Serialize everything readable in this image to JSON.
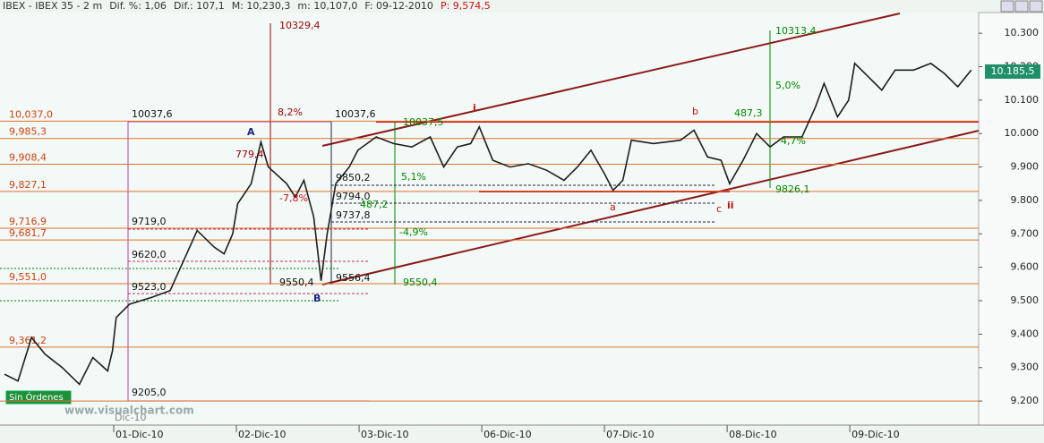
{
  "chart_data": {
    "type": "line",
    "header": [
      "IBEX - IBEX 35 - 2 m",
      "Dif. %: 1,06",
      "Dif.: 107,1",
      "M: 10,230,3",
      "m: 10,107,0",
      "F: 09-12-2010",
      "P: 9,574,5"
    ],
    "x": [
      0.11,
      0.22,
      0.33,
      0.44,
      0.58,
      0.72,
      0.83,
      0.95,
      0.99,
      1.02,
      1.13,
      1.31,
      1.46,
      1.57,
      1.68,
      1.82,
      1.9,
      1.97,
      2.01,
      2.12,
      2.2,
      2.26,
      2.41,
      2.48,
      2.55,
      2.63,
      2.69,
      2.74,
      2.81,
      2.92,
      2.99,
      3.14,
      3.28,
      3.43,
      3.58,
      3.69,
      3.8,
      3.91,
      3.98,
      4.09,
      4.23,
      4.38,
      4.53,
      4.67,
      4.78,
      4.89,
      5.0,
      5.07,
      5.15,
      5.22,
      5.4,
      5.62,
      5.73,
      5.84,
      5.95,
      6.02,
      6.13,
      6.24,
      6.35,
      6.46,
      6.61,
      6.72,
      6.79,
      6.9,
      6.99,
      7.04,
      7.15,
      7.26,
      7.37,
      7.52,
      7.66,
      7.77,
      7.88,
      7.99
    ],
    "series": [
      {
        "color": "#1e1e1e",
        "values": [
          9280,
          9260,
          9390,
          9340,
          9300,
          9250,
          9330,
          9290,
          9350,
          9450,
          9490,
          9510,
          9530,
          9620,
          9710,
          9660,
          9640,
          9700,
          9790,
          9850,
          9975,
          9900,
          9850,
          9810,
          9860,
          9750,
          9560,
          9700,
          9850,
          9900,
          9950,
          9990,
          9970,
          9960,
          9990,
          9900,
          9960,
          9970,
          10020,
          9920,
          9900,
          9910,
          9890,
          9860,
          9900,
          9950,
          9880,
          9830,
          9860,
          9980,
          9970,
          9980,
          10010,
          9930,
          9920,
          9850,
          9920,
          10000,
          9960,
          9990,
          9990,
          10080,
          10150,
          10050,
          10100,
          10210,
          10170,
          10130,
          10190,
          10190,
          10210,
          10180,
          10140,
          10190
        ]
      }
    ],
    "xlim": [
      0.073,
      8.05
    ],
    "xticks": [
      {
        "value": 1,
        "label": "01-Dic-10"
      },
      {
        "value": 2,
        "label": "02-Dic-10"
      },
      {
        "value": 3,
        "label": "03-Dic-10"
      },
      {
        "value": 4,
        "label": "06-Dic-10"
      },
      {
        "value": 5,
        "label": "07-Dic-10"
      },
      {
        "value": 6,
        "label": "08-Dic-10"
      },
      {
        "value": 7,
        "label": "09-Dic-10"
      }
    ],
    "ylim": [
      9128,
      10362
    ],
    "yticks": [
      {
        "value": 10300,
        "label": "10.300"
      },
      {
        "value": 10200,
        "label": "10.200"
      },
      {
        "value": 10100,
        "label": "10.100"
      },
      {
        "value": 10000,
        "label": "10.000"
      },
      {
        "value": 9900,
        "label": "9.900"
      },
      {
        "value": 9800,
        "label": "9.800"
      },
      {
        "value": 9700,
        "label": "9.700"
      },
      {
        "value": 9600,
        "label": "9.600"
      },
      {
        "value": 9500,
        "label": "9.500"
      },
      {
        "value": 9400,
        "label": "9.400"
      },
      {
        "value": 9300,
        "label": "9.300"
      },
      {
        "value": 9200,
        "label": "9.200"
      }
    ],
    "levels": [
      {
        "value": 10037,
        "label": "10,037,0"
      },
      {
        "value": 9985.3,
        "label": "9,985,3"
      },
      {
        "value": 9908.4,
        "label": "9,908,4"
      },
      {
        "value": 9827.1,
        "label": "9,827,1"
      },
      {
        "value": 9716.9,
        "label": "9,716,9"
      },
      {
        "value": 9681.7,
        "label": "9,681,7"
      },
      {
        "value": 9551,
        "label": "9,551,0"
      },
      {
        "value": 9361.2,
        "label": "9,361,2"
      },
      {
        "value": 9200
      }
    ],
    "last_price": {
      "value": 10185.5,
      "label": "10.185,5"
    },
    "annotations": [
      "10329,4",
      "8,2%",
      "10037,6",
      "10037,6",
      "A",
      "779,4",
      "-7,8%",
      "9719,0",
      "9620,0",
      "9523,0",
      "9205,0",
      "9550,4",
      "B",
      "9556,4",
      "9850,2",
      "9794,0",
      "9737,8",
      "487,2",
      "5,1%",
      "-4,9%",
      "9550,4",
      "10037,5",
      "i",
      "a",
      "b",
      "c",
      "ii",
      "487,3",
      "10313,4",
      "5,0%",
      "4,7%",
      "9826,1",
      "Dic-10",
      "www.visualchart.com"
    ],
    "status": "Sin Órdenes"
  }
}
